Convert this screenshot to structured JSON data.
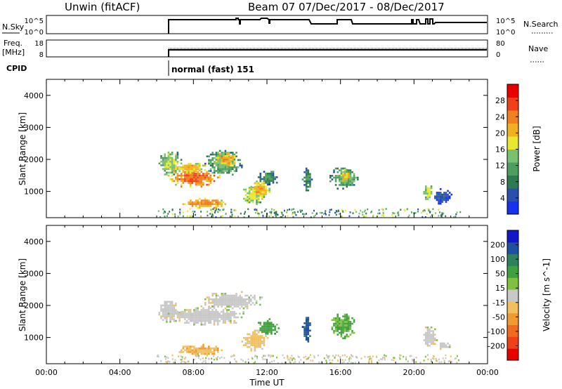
{
  "header": {
    "title": "Unwin (fitACF)",
    "beam_info": "Beam 07  07/Dec/2017 - 08/Dec/2017"
  },
  "top_panels": {
    "nsky_label": "N.Sky",
    "nsky_ticks": [
      "10^5",
      "10^0"
    ],
    "nsearch_label": "N.Search",
    "nsearch_ticks": [
      "10^5",
      "10^0"
    ],
    "freq_label": "Freq.",
    "freq_unit": "[MHz]",
    "freq_ticks": [
      "18",
      "8"
    ],
    "nave_label": "Nave",
    "nave_ticks": [
      "80",
      "0"
    ],
    "cpid_label": "CPID",
    "cpid_text": "normal (fast) 151"
  },
  "colors": {
    "power": [
      "#1432f0",
      "#2a4fb0",
      "#2f7a50",
      "#4e9e60",
      "#7ac070",
      "#e8e830",
      "#f0b020",
      "#f08020",
      "#f04018",
      "#e80000"
    ],
    "velocity": [
      "#e80000",
      "#f04018",
      "#f06a20",
      "#f09a30",
      "#f0c060",
      "#c8c8c8",
      "#80c040",
      "#40a040",
      "#308060",
      "#2050a0",
      "#1018c8"
    ]
  },
  "chart_data": [
    {
      "type": "heatmap",
      "panel": "power",
      "ylabel": "Slant Range [km]",
      "yticks": [
        1000,
        2000,
        3000,
        4000
      ],
      "ylim": [
        180,
        4500
      ],
      "xlim": [
        0,
        24
      ],
      "colorbar": {
        "label": "Power [dB]",
        "ticks": [
          "28",
          "24",
          "20",
          "16",
          "12",
          "8",
          "4"
        ],
        "range": [
          0,
          32
        ]
      },
      "regions": [
        {
          "t": [
            6.0,
            7.4
          ],
          "r": [
            1500,
            2300
          ],
          "v": 16
        },
        {
          "t": [
            6.6,
            9.4
          ],
          "r": [
            1150,
            1750
          ],
          "v": 26
        },
        {
          "t": [
            6.8,
            8.6
          ],
          "r": [
            1600,
            1950
          ],
          "v": 22
        },
        {
          "t": [
            8.6,
            10.6
          ],
          "r": [
            1500,
            2350
          ],
          "v": 14
        },
        {
          "t": [
            9.1,
            10.4
          ],
          "r": [
            1800,
            2250
          ],
          "v": 22
        },
        {
          "t": [
            7.2,
            9.8
          ],
          "r": [
            500,
            800
          ],
          "v": 24
        },
        {
          "t": [
            10.6,
            11.8
          ],
          "r": [
            600,
            1200
          ],
          "v": 18
        },
        {
          "t": [
            11.0,
            12.2
          ],
          "r": [
            800,
            1400
          ],
          "v": 22
        },
        {
          "t": [
            11.5,
            12.6
          ],
          "r": [
            1200,
            1700
          ],
          "v": 10
        },
        {
          "t": [
            13.9,
            14.4
          ],
          "r": [
            1000,
            1800
          ],
          "v": 11
        },
        {
          "t": [
            15.4,
            16.9
          ],
          "r": [
            1100,
            1800
          ],
          "v": 14
        },
        {
          "t": [
            15.9,
            16.6
          ],
          "r": [
            1300,
            1700
          ],
          "v": 20
        },
        {
          "t": [
            20.5,
            21.0
          ],
          "r": [
            700,
            1300
          ],
          "v": 18
        },
        {
          "t": [
            21.0,
            22.0
          ],
          "r": [
            600,
            1100
          ],
          "v": 6
        }
      ]
    },
    {
      "type": "heatmap",
      "panel": "velocity",
      "ylabel": "Slant Range [km]",
      "yticks": [
        1000,
        2000,
        3000,
        4000
      ],
      "ylim": [
        180,
        4500
      ],
      "xlim": [
        0,
        24
      ],
      "xticks": [
        "00:00",
        "04:00",
        "08:00",
        "12:00",
        "16:00",
        "20:00",
        "00:00"
      ],
      "xlabel": "Time UT",
      "colorbar": {
        "label": "Velocity [m s^-1]",
        "ticks": [
          "200",
          "100",
          "50",
          "15",
          "-15",
          "-50",
          "-100",
          "-200"
        ],
        "range": [
          -250,
          250
        ]
      },
      "regions": [
        {
          "t": [
            6.0,
            7.2
          ],
          "r": [
            1500,
            2200
          ],
          "v": 0
        },
        {
          "t": [
            6.4,
            10.8
          ],
          "r": [
            1400,
            2000
          ],
          "v": 0
        },
        {
          "t": [
            8.4,
            11.8
          ],
          "r": [
            1900,
            2450
          ],
          "v": 0
        },
        {
          "t": [
            7.0,
            9.6
          ],
          "r": [
            450,
            800
          ],
          "v": -60
        },
        {
          "t": [
            10.6,
            12.0
          ],
          "r": [
            600,
            1300
          ],
          "v": -40
        },
        {
          "t": [
            11.4,
            12.6
          ],
          "r": [
            1100,
            1600
          ],
          "v": 90
        },
        {
          "t": [
            13.9,
            14.4
          ],
          "r": [
            900,
            1700
          ],
          "v": 180
        },
        {
          "t": [
            15.4,
            16.8
          ],
          "r": [
            1000,
            1800
          ],
          "v": 70
        },
        {
          "t": [
            20.4,
            21.2
          ],
          "r": [
            700,
            1400
          ],
          "v": 0
        },
        {
          "t": [
            21.2,
            22.0
          ],
          "r": [
            650,
            900
          ],
          "v": 0
        }
      ]
    }
  ]
}
